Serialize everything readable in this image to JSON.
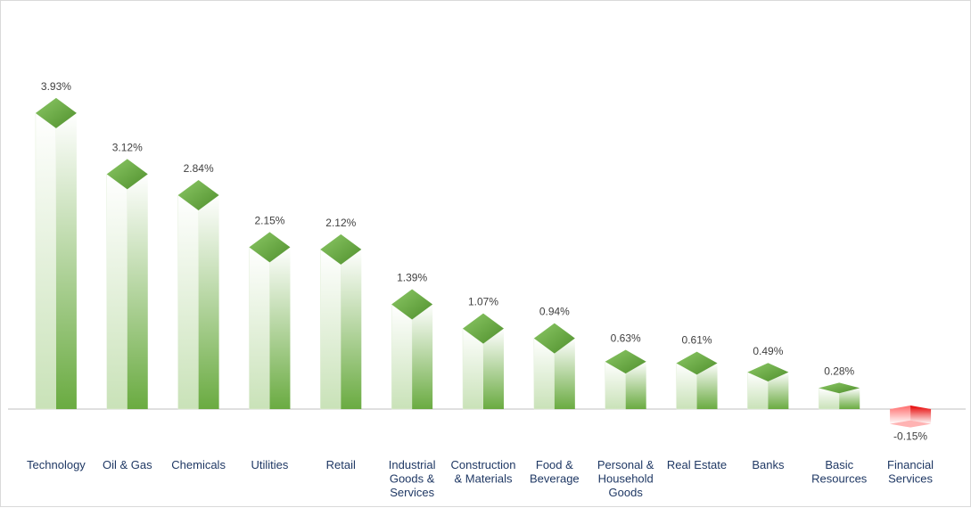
{
  "chart_data": {
    "type": "bar",
    "title": "",
    "xlabel": "",
    "ylabel": "",
    "categories": [
      [
        "Technology"
      ],
      [
        "Oil & Gas"
      ],
      [
        "Chemicals"
      ],
      [
        "Utilities"
      ],
      [
        "Retail"
      ],
      [
        "Industrial",
        "Goods &",
        "Services"
      ],
      [
        "Construction",
        "& Materials"
      ],
      [
        "Food &",
        "Beverage"
      ],
      [
        "Personal &",
        "Household",
        "Goods"
      ],
      [
        "Real Estate"
      ],
      [
        "Banks"
      ],
      [
        "Basic",
        "Resources"
      ],
      [
        "Financial",
        "Services"
      ]
    ],
    "values": [
      3.93,
      3.12,
      2.84,
      2.15,
      2.12,
      1.39,
      1.07,
      0.94,
      0.63,
      0.61,
      0.49,
      0.28,
      -0.15
    ],
    "data_labels": [
      "3.93%",
      "3.12%",
      "2.84%",
      "2.15%",
      "2.12%",
      "1.39%",
      "1.07%",
      "0.94%",
      "0.63%",
      "0.61%",
      "0.49%",
      "0.28%",
      "-0.15%"
    ],
    "value_suffix": "%",
    "ylim": [
      -0.25,
      4.2
    ],
    "grid": false,
    "legend": "none",
    "colors": {
      "positive": "#70ad47",
      "positive_light": "#ffffff",
      "positive_top": "#5e9e3a",
      "negative": "#ff0000",
      "negative_light": "#ffffff",
      "axis": "#bfbfbf",
      "value_text": "#404040",
      "category_text": "#1f3864"
    }
  }
}
